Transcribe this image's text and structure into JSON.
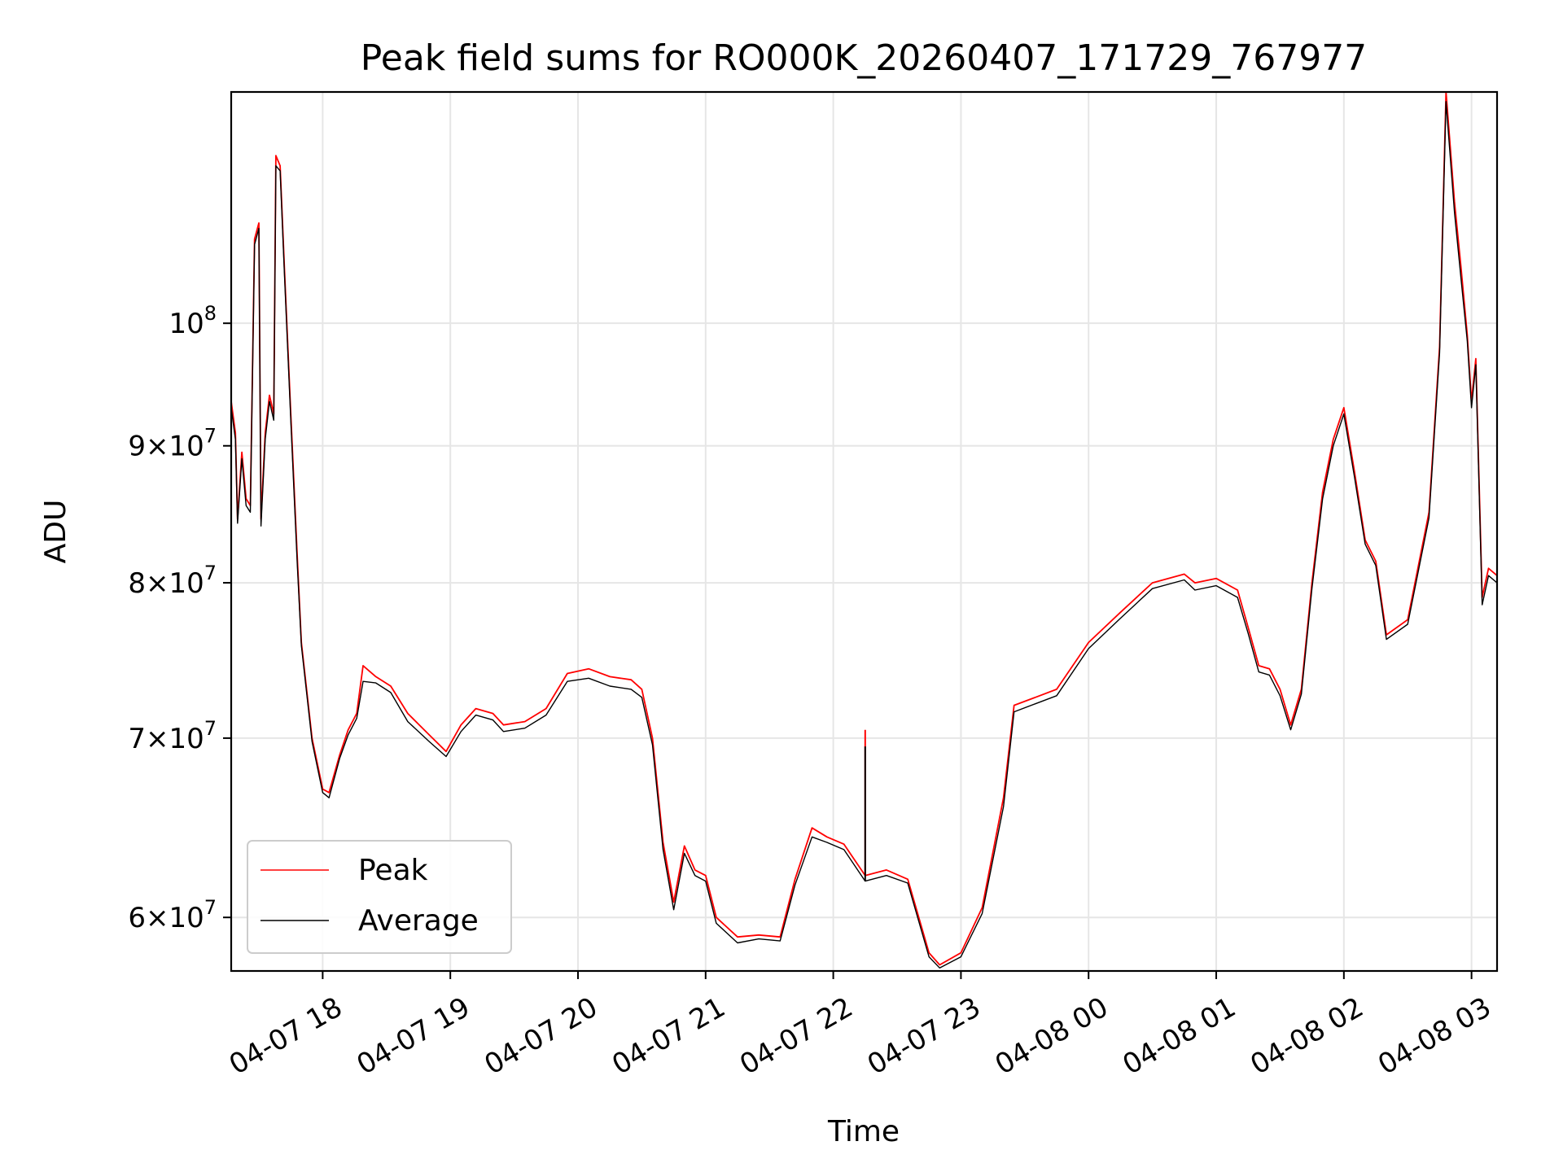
{
  "chart_data": {
    "type": "line",
    "title": "Peak field sums for RO000K_20260407_171729_767977",
    "xlabel": "Time",
    "ylabel": "ADU",
    "yscale": "log",
    "grid": true,
    "legend_placement": "lower-left",
    "xlim": [
      "2026-04-07 17:17",
      "2026-04-08 03:12"
    ],
    "ylim": [
      57300000,
      122000000
    ],
    "x_ticks": [
      {
        "value": "2026-04-07 18:00",
        "label": "04-07 18"
      },
      {
        "value": "2026-04-07 19:00",
        "label": "04-07 19"
      },
      {
        "value": "2026-04-07 20:00",
        "label": "04-07 20"
      },
      {
        "value": "2026-04-07 21:00",
        "label": "04-07 21"
      },
      {
        "value": "2026-04-07 22:00",
        "label": "04-07 22"
      },
      {
        "value": "2026-04-07 23:00",
        "label": "04-07 23"
      },
      {
        "value": "2026-04-08 00:00",
        "label": "04-08 00"
      },
      {
        "value": "2026-04-08 01:00",
        "label": "04-08 01"
      },
      {
        "value": "2026-04-08 02:00",
        "label": "04-08 02"
      },
      {
        "value": "2026-04-08 03:00",
        "label": "04-08 03"
      }
    ],
    "y_ticks": [
      {
        "value": 60000000,
        "mantissa": "6",
        "base": "10",
        "exp": "7"
      },
      {
        "value": 70000000,
        "mantissa": "7",
        "base": "10",
        "exp": "7"
      },
      {
        "value": 80000000,
        "mantissa": "8",
        "base": "10",
        "exp": "7"
      },
      {
        "value": 90000000,
        "mantissa": "9",
        "base": "10",
        "exp": "7"
      },
      {
        "value": 100000000,
        "mantissa": "",
        "base": "10",
        "exp": "8"
      }
    ],
    "series": [
      {
        "name": "Peak",
        "color": "#ff0000",
        "points": [
          [
            "2026-04-07 17:17",
            93500000
          ],
          [
            "2026-04-07 17:19",
            91000000
          ],
          [
            "2026-04-07 17:20",
            84500000
          ],
          [
            "2026-04-07 17:22",
            89500000
          ],
          [
            "2026-04-07 17:24",
            86000000
          ],
          [
            "2026-04-07 17:26",
            85500000
          ],
          [
            "2026-04-07 17:28",
            107500000
          ],
          [
            "2026-04-07 17:30",
            109000000
          ],
          [
            "2026-04-07 17:31",
            84500000
          ],
          [
            "2026-04-07 17:33",
            91000000
          ],
          [
            "2026-04-07 17:35",
            94000000
          ],
          [
            "2026-04-07 17:37",
            92500000
          ],
          [
            "2026-04-07 17:38",
            115500000
          ],
          [
            "2026-04-07 17:40",
            114500000
          ],
          [
            "2026-04-07 17:42",
            105000000
          ],
          [
            "2026-04-07 17:45",
            92500000
          ],
          [
            "2026-04-07 17:48",
            82000000
          ],
          [
            "2026-04-07 17:50",
            76000000
          ],
          [
            "2026-04-07 17:55",
            70000000
          ],
          [
            "2026-04-07 18:00",
            67000000
          ],
          [
            "2026-04-07 18:03",
            66800000
          ],
          [
            "2026-04-07 18:08",
            69000000
          ],
          [
            "2026-04-07 18:12",
            70500000
          ],
          [
            "2026-04-07 18:16",
            71500000
          ],
          [
            "2026-04-07 18:19",
            74500000
          ],
          [
            "2026-04-07 18:25",
            73800000
          ],
          [
            "2026-04-07 18:32",
            73200000
          ],
          [
            "2026-04-07 18:40",
            71500000
          ],
          [
            "2026-04-07 18:50",
            70200000
          ],
          [
            "2026-04-07 18:58",
            69200000
          ],
          [
            "2026-04-07 19:05",
            70800000
          ],
          [
            "2026-04-07 19:12",
            71800000
          ],
          [
            "2026-04-07 19:20",
            71500000
          ],
          [
            "2026-04-07 19:25",
            70800000
          ],
          [
            "2026-04-07 19:35",
            71000000
          ],
          [
            "2026-04-07 19:45",
            71800000
          ],
          [
            "2026-04-07 19:55",
            74000000
          ],
          [
            "2026-04-07 20:05",
            74300000
          ],
          [
            "2026-04-07 20:15",
            73800000
          ],
          [
            "2026-04-07 20:25",
            73600000
          ],
          [
            "2026-04-07 20:30",
            73000000
          ],
          [
            "2026-04-07 20:35",
            70000000
          ],
          [
            "2026-04-07 20:40",
            64000000
          ],
          [
            "2026-04-07 20:45",
            60800000
          ],
          [
            "2026-04-07 20:50",
            63800000
          ],
          [
            "2026-04-07 20:55",
            62500000
          ],
          [
            "2026-04-07 21:00",
            62200000
          ],
          [
            "2026-04-07 21:05",
            60000000
          ],
          [
            "2026-04-07 21:15",
            59000000
          ],
          [
            "2026-04-07 21:25",
            59100000
          ],
          [
            "2026-04-07 21:35",
            59000000
          ],
          [
            "2026-04-07 21:42",
            62000000
          ],
          [
            "2026-04-07 21:50",
            64800000
          ],
          [
            "2026-04-07 21:57",
            64300000
          ],
          [
            "2026-04-07 22:05",
            63900000
          ],
          [
            "2026-04-07 22:15",
            62200000
          ],
          [
            "2026-04-07 22:25",
            62500000
          ],
          [
            "2026-04-07 22:35",
            62000000
          ],
          [
            "2026-04-07 22:45",
            58200000
          ],
          [
            "2026-04-07 22:50",
            57600000
          ],
          [
            "2026-04-07 23:00",
            58200000
          ],
          [
            "2026-04-07 23:10",
            60500000
          ],
          [
            "2026-04-07 23:20",
            66500000
          ],
          [
            "2026-04-07 23:25",
            72000000
          ],
          [
            "2026-04-07 23:35",
            72500000
          ],
          [
            "2026-04-07 23:45",
            73000000
          ],
          [
            "2026-04-08 00:00",
            76000000
          ],
          [
            "2026-04-08 00:15",
            78000000
          ],
          [
            "2026-04-08 00:30",
            80000000
          ],
          [
            "2026-04-08 00:45",
            80600000
          ],
          [
            "2026-04-08 00:50",
            80000000
          ],
          [
            "2026-04-08 01:00",
            80300000
          ],
          [
            "2026-04-08 01:10",
            79500000
          ],
          [
            "2026-04-08 01:15",
            77000000
          ],
          [
            "2026-04-08 01:20",
            74500000
          ],
          [
            "2026-04-08 01:25",
            74300000
          ],
          [
            "2026-04-08 01:30",
            73000000
          ],
          [
            "2026-04-08 01:35",
            70800000
          ],
          [
            "2026-04-08 01:40",
            73000000
          ],
          [
            "2026-04-08 01:45",
            80000000
          ],
          [
            "2026-04-08 01:50",
            86500000
          ],
          [
            "2026-04-08 01:55",
            90500000
          ],
          [
            "2026-04-08 02:00",
            93000000
          ],
          [
            "2026-04-08 02:05",
            88000000
          ],
          [
            "2026-04-08 02:10",
            83000000
          ],
          [
            "2026-04-08 02:15",
            81500000
          ],
          [
            "2026-04-08 02:20",
            76500000
          ],
          [
            "2026-04-08 02:30",
            77500000
          ],
          [
            "2026-04-08 02:40",
            85000000
          ],
          [
            "2026-04-08 02:45",
            98000000
          ],
          [
            "2026-04-08 02:48",
            122000000
          ],
          [
            "2026-04-08 02:52",
            111000000
          ],
          [
            "2026-04-08 02:55",
            105000000
          ],
          [
            "2026-04-08 02:58",
            99000000
          ],
          [
            "2026-04-08 03:00",
            93500000
          ],
          [
            "2026-04-08 03:02",
            97000000
          ],
          [
            "2026-04-08 03:05",
            79000000
          ],
          [
            "2026-04-08 03:08",
            81000000
          ],
          [
            "2026-04-08 03:12",
            80500000
          ]
        ]
      },
      {
        "name": "Average",
        "color": "#000000",
        "points": [
          [
            "2026-04-07 17:17",
            93000000
          ],
          [
            "2026-04-07 17:19",
            90500000
          ],
          [
            "2026-04-07 17:20",
            84200000
          ],
          [
            "2026-04-07 17:22",
            89000000
          ],
          [
            "2026-04-07 17:24",
            85500000
          ],
          [
            "2026-04-07 17:26",
            85000000
          ],
          [
            "2026-04-07 17:28",
            107000000
          ],
          [
            "2026-04-07 17:30",
            108500000
          ],
          [
            "2026-04-07 17:31",
            84000000
          ],
          [
            "2026-04-07 17:33",
            90500000
          ],
          [
            "2026-04-07 17:35",
            93500000
          ],
          [
            "2026-04-07 17:37",
            92000000
          ],
          [
            "2026-04-07 17:38",
            114500000
          ],
          [
            "2026-04-07 17:40",
            114000000
          ],
          [
            "2026-04-07 17:42",
            104500000
          ],
          [
            "2026-04-07 17:45",
            92000000
          ],
          [
            "2026-04-07 17:48",
            81500000
          ],
          [
            "2026-04-07 17:50",
            75800000
          ],
          [
            "2026-04-07 17:55",
            69800000
          ],
          [
            "2026-04-07 18:00",
            66800000
          ],
          [
            "2026-04-07 18:03",
            66500000
          ],
          [
            "2026-04-07 18:08",
            68800000
          ],
          [
            "2026-04-07 18:12",
            70200000
          ],
          [
            "2026-04-07 18:16",
            71200000
          ],
          [
            "2026-04-07 18:19",
            73500000
          ],
          [
            "2026-04-07 18:25",
            73400000
          ],
          [
            "2026-04-07 18:32",
            72800000
          ],
          [
            "2026-04-07 18:40",
            71000000
          ],
          [
            "2026-04-07 18:50",
            69800000
          ],
          [
            "2026-04-07 18:58",
            68900000
          ],
          [
            "2026-04-07 19:05",
            70400000
          ],
          [
            "2026-04-07 19:12",
            71400000
          ],
          [
            "2026-04-07 19:20",
            71100000
          ],
          [
            "2026-04-07 19:25",
            70400000
          ],
          [
            "2026-04-07 19:35",
            70600000
          ],
          [
            "2026-04-07 19:45",
            71400000
          ],
          [
            "2026-04-07 19:55",
            73500000
          ],
          [
            "2026-04-07 20:05",
            73700000
          ],
          [
            "2026-04-07 20:15",
            73200000
          ],
          [
            "2026-04-07 20:25",
            73000000
          ],
          [
            "2026-04-07 20:30",
            72500000
          ],
          [
            "2026-04-07 20:35",
            69600000
          ],
          [
            "2026-04-07 20:40",
            63600000
          ],
          [
            "2026-04-07 20:45",
            60400000
          ],
          [
            "2026-04-07 20:50",
            63400000
          ],
          [
            "2026-04-07 20:55",
            62200000
          ],
          [
            "2026-04-07 21:00",
            61900000
          ],
          [
            "2026-04-07 21:05",
            59700000
          ],
          [
            "2026-04-07 21:15",
            58700000
          ],
          [
            "2026-04-07 21:25",
            58900000
          ],
          [
            "2026-04-07 21:35",
            58800000
          ],
          [
            "2026-04-07 21:42",
            61700000
          ],
          [
            "2026-04-07 21:50",
            64300000
          ],
          [
            "2026-04-07 21:57",
            64000000
          ],
          [
            "2026-04-07 22:05",
            63600000
          ],
          [
            "2026-04-07 22:15",
            61900000
          ],
          [
            "2026-04-07 22:25",
            62200000
          ],
          [
            "2026-04-07 22:35",
            61800000
          ],
          [
            "2026-04-07 22:45",
            58000000
          ],
          [
            "2026-04-07 22:50",
            57450000
          ],
          [
            "2026-04-07 23:00",
            58000000
          ],
          [
            "2026-04-07 23:10",
            60200000
          ],
          [
            "2026-04-07 23:20",
            66000000
          ],
          [
            "2026-04-07 23:25",
            71600000
          ],
          [
            "2026-04-07 23:35",
            72100000
          ],
          [
            "2026-04-07 23:45",
            72600000
          ],
          [
            "2026-04-08 00:00",
            75600000
          ],
          [
            "2026-04-08 00:15",
            77600000
          ],
          [
            "2026-04-08 00:30",
            79600000
          ],
          [
            "2026-04-08 00:45",
            80200000
          ],
          [
            "2026-04-08 00:50",
            79500000
          ],
          [
            "2026-04-08 01:00",
            79800000
          ],
          [
            "2026-04-08 01:10",
            79000000
          ],
          [
            "2026-04-08 01:15",
            76600000
          ],
          [
            "2026-04-08 01:20",
            74100000
          ],
          [
            "2026-04-08 01:25",
            73900000
          ],
          [
            "2026-04-08 01:30",
            72600000
          ],
          [
            "2026-04-08 01:35",
            70500000
          ],
          [
            "2026-04-08 01:40",
            72700000
          ],
          [
            "2026-04-08 01:45",
            79600000
          ],
          [
            "2026-04-08 01:50",
            86000000
          ],
          [
            "2026-04-08 01:55",
            90000000
          ],
          [
            "2026-04-08 02:00",
            92500000
          ],
          [
            "2026-04-08 02:05",
            87600000
          ],
          [
            "2026-04-08 02:10",
            82700000
          ],
          [
            "2026-04-08 02:15",
            81200000
          ],
          [
            "2026-04-08 02:20",
            76200000
          ],
          [
            "2026-04-08 02:30",
            77200000
          ],
          [
            "2026-04-08 02:40",
            84600000
          ],
          [
            "2026-04-08 02:45",
            97500000
          ],
          [
            "2026-04-08 02:48",
            121000000
          ],
          [
            "2026-04-08 02:52",
            110000000
          ],
          [
            "2026-04-08 02:55",
            104000000
          ],
          [
            "2026-04-08 02:58",
            98500000
          ],
          [
            "2026-04-08 03:00",
            93000000
          ],
          [
            "2026-04-08 03:02",
            96500000
          ],
          [
            "2026-04-08 03:05",
            78500000
          ],
          [
            "2026-04-08 03:08",
            80500000
          ],
          [
            "2026-04-08 03:12",
            80000000
          ]
        ]
      }
    ],
    "spikes": [
      {
        "series": "Peak",
        "x": "2026-04-07 22:15",
        "y": 70500000
      },
      {
        "series": "Average",
        "x": "2026-04-07 22:15",
        "y": 69500000
      }
    ]
  }
}
